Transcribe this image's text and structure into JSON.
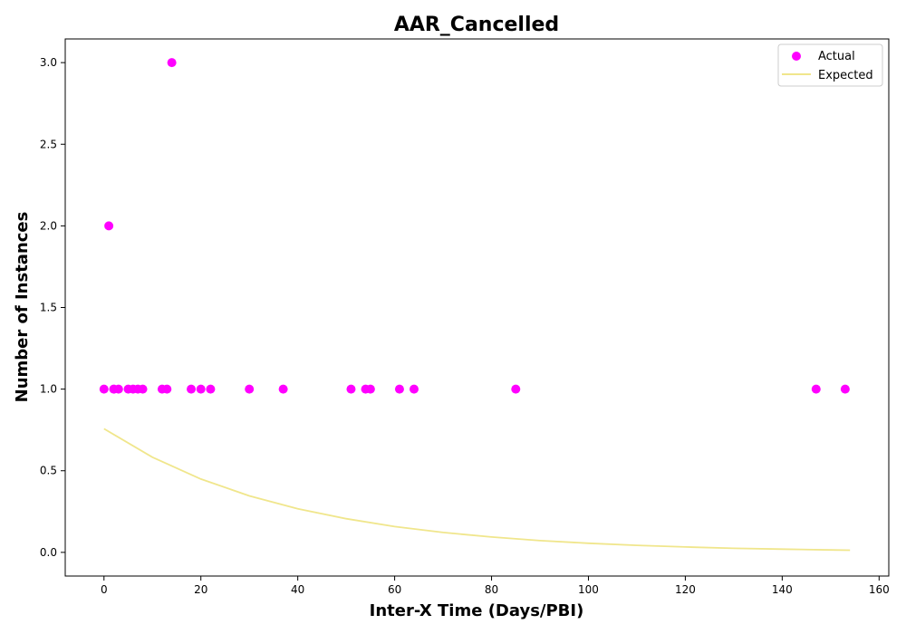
{
  "chart_data": {
    "type": "scatter",
    "title": "AAR_Cancelled",
    "xlabel": "Inter-X Time (Days/PBI)",
    "ylabel": "Number of Instances",
    "xlim": [
      -8,
      162
    ],
    "ylim": [
      -0.145,
      3.145
    ],
    "xticks": [
      0,
      20,
      40,
      60,
      80,
      100,
      120,
      140,
      160
    ],
    "yticks": [
      0.0,
      0.5,
      1.0,
      1.5,
      2.0,
      2.5,
      3.0
    ],
    "xtick_labels": [
      "0",
      "20",
      "40",
      "60",
      "80",
      "100",
      "120",
      "140",
      "160"
    ],
    "ytick_labels": [
      "0.0",
      "0.5",
      "1.0",
      "1.5",
      "2.0",
      "2.5",
      "3.0"
    ],
    "grid": false,
    "legend_position": "top-right",
    "series": [
      {
        "name": "Actual",
        "kind": "scatter",
        "color": "#ff00ff",
        "points": [
          [
            0,
            1
          ],
          [
            1,
            2
          ],
          [
            2,
            1
          ],
          [
            3,
            1
          ],
          [
            5,
            1
          ],
          [
            6,
            1
          ],
          [
            7,
            1
          ],
          [
            8,
            1
          ],
          [
            12,
            1
          ],
          [
            13,
            1
          ],
          [
            14,
            3
          ],
          [
            18,
            1
          ],
          [
            20,
            1
          ],
          [
            22,
            1
          ],
          [
            30,
            1
          ],
          [
            37,
            1
          ],
          [
            51,
            1
          ],
          [
            54,
            1
          ],
          [
            55,
            1
          ],
          [
            61,
            1
          ],
          [
            64,
            1
          ],
          [
            85,
            1
          ],
          [
            147,
            1
          ],
          [
            153,
            1
          ]
        ]
      },
      {
        "name": "Expected",
        "kind": "line",
        "color": "#f0e68c",
        "x": [
          0,
          10,
          20,
          30,
          40,
          50,
          60,
          70,
          80,
          90,
          100,
          110,
          120,
          130,
          140,
          150,
          154
        ],
        "values": [
          0.757,
          0.583,
          0.449,
          0.346,
          0.267,
          0.206,
          0.158,
          0.122,
          0.094,
          0.072,
          0.056,
          0.043,
          0.033,
          0.025,
          0.02,
          0.015,
          0.013
        ]
      }
    ]
  }
}
